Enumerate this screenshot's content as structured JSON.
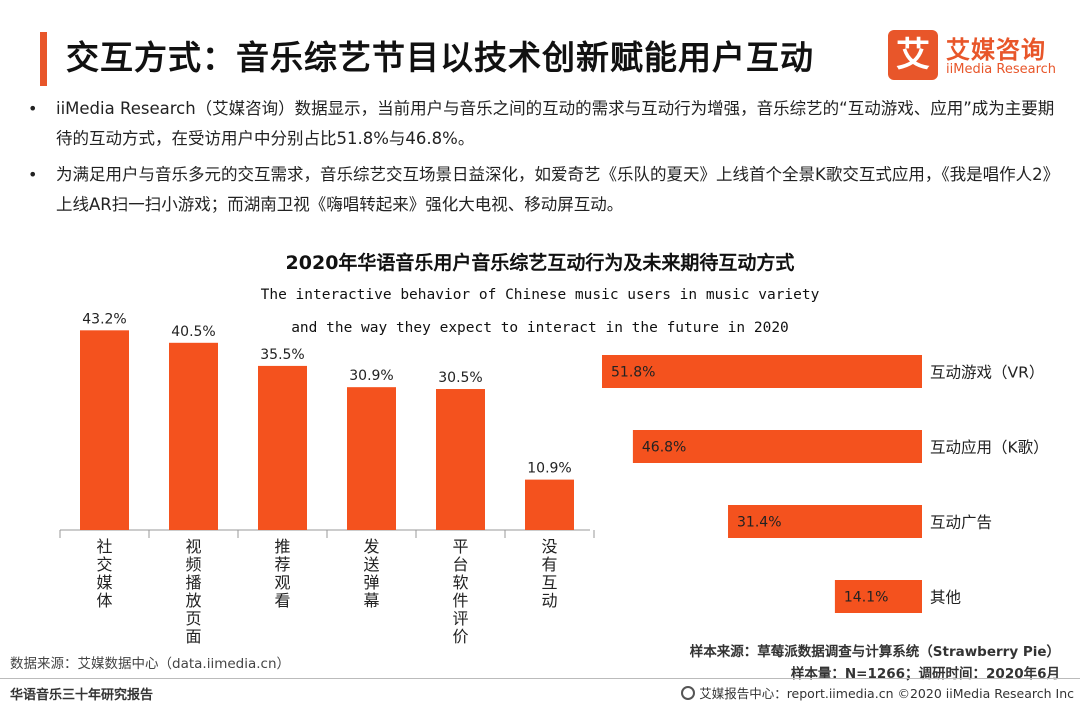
{
  "header": {
    "title": "交互方式：音乐综艺节目以技术创新赋能用户互动",
    "logo_mark": "艾",
    "logo_cn": "艾媒咨询",
    "logo_en": "iiMedia Research"
  },
  "bullets": [
    "iiMedia Research（艾媒咨询）数据显示，当前用户与音乐之间的互动的需求与互动行为增强，音乐综艺的“互动游戏、应用”成为主要期待的互动方式，在受访用户中分别占比51.8%与46.8%。",
    "为满足用户与音乐多元的交互需求，音乐综艺交互场景日益深化，如爱奇艺《乐队的夏天》上线首个全景K歌交互式应用，《我是唱作人2》上线AR扫一扫小游戏；而湖南卫视《嗨唱转起来》强化大电视、移动屏互动。"
  ],
  "chart_heading": {
    "title": "2020年华语音乐用户音乐综艺互动行为及未来期待互动方式",
    "subtitle_line1": "The interactive behavior of Chinese music users in music variety",
    "subtitle_line2": "and the way they expect to interact in the future in   2020"
  },
  "chart_data": [
    {
      "type": "bar",
      "categories": [
        "社交媒体",
        "视频播放页面",
        "推荐观看",
        "发送弹幕",
        "平台软件评价",
        "没有互动"
      ],
      "values": [
        43.2,
        40.5,
        35.5,
        30.9,
        30.5,
        10.9
      ],
      "value_labels": [
        "43.2%",
        "40.5%",
        "35.5%",
        "30.9%",
        "30.5%",
        "10.9%"
      ],
      "ylim": [
        0,
        45
      ],
      "color": "#f4521e"
    },
    {
      "type": "bar",
      "orientation": "horizontal",
      "categories": [
        "互动游戏（VR）",
        "互动应用（K歌）",
        "互动广告",
        "其他"
      ],
      "values": [
        51.8,
        46.8,
        31.4,
        14.1
      ],
      "value_labels": [
        "51.8%",
        "46.8%",
        "31.4%",
        "14.1%"
      ],
      "xlim": [
        0,
        51.8
      ],
      "color": "#f4521e"
    }
  ],
  "sources": {
    "data_source": "数据来源：艾媒数据中心（data.iimedia.cn）",
    "sample_source": "样本来源：草莓派数据调查与计算系统（Strawberry Pie）",
    "sample_size": "样本量：N=1266；调研时间：2020年6月"
  },
  "footer": {
    "left": "华语音乐三十年研究报告",
    "right": "艾媒报告中心：report.iimedia.cn  ©2020  iiMedia Research  Inc"
  }
}
